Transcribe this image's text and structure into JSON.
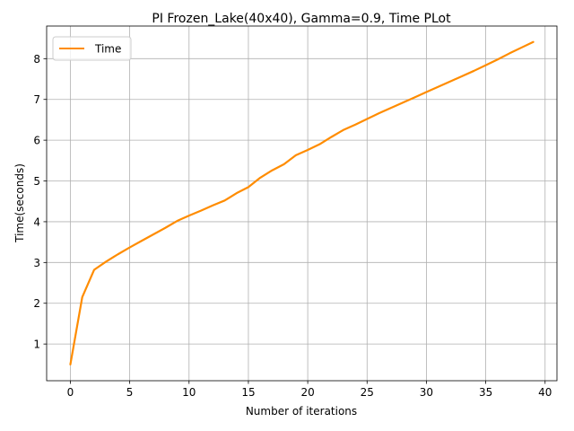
{
  "chart_data": {
    "type": "line",
    "title": "PI Frozen_Lake(40x40), Gamma=0.9, Time PLot",
    "xlabel": "Number of iterations",
    "ylabel": "Time(seconds)",
    "xlim": [
      -2,
      41
    ],
    "ylim": [
      0.1,
      8.8
    ],
    "xticks": [
      0,
      5,
      10,
      15,
      20,
      25,
      30,
      35,
      40
    ],
    "yticks": [
      1,
      2,
      3,
      4,
      5,
      6,
      7,
      8
    ],
    "grid": true,
    "legend_position": "upper-left",
    "series": [
      {
        "name": "Time",
        "color": "#ff8c00",
        "x": [
          0,
          1,
          2,
          3,
          4,
          5,
          6,
          7,
          8,
          9,
          10,
          11,
          12,
          13,
          14,
          15,
          16,
          17,
          18,
          19,
          20,
          21,
          22,
          23,
          24,
          25,
          26,
          27,
          28,
          29,
          30,
          31,
          32,
          33,
          34,
          35,
          36,
          37,
          38,
          39
        ],
        "values": [
          0.5,
          2.15,
          2.82,
          3.02,
          3.2,
          3.37,
          3.53,
          3.69,
          3.85,
          4.02,
          4.15,
          4.27,
          4.4,
          4.52,
          4.7,
          4.85,
          5.08,
          5.26,
          5.41,
          5.63,
          5.76,
          5.9,
          6.08,
          6.25,
          6.38,
          6.52,
          6.66,
          6.79,
          6.92,
          7.05,
          7.18,
          7.31,
          7.44,
          7.57,
          7.7,
          7.84,
          7.98,
          8.13,
          8.27,
          8.41
        ]
      }
    ]
  }
}
